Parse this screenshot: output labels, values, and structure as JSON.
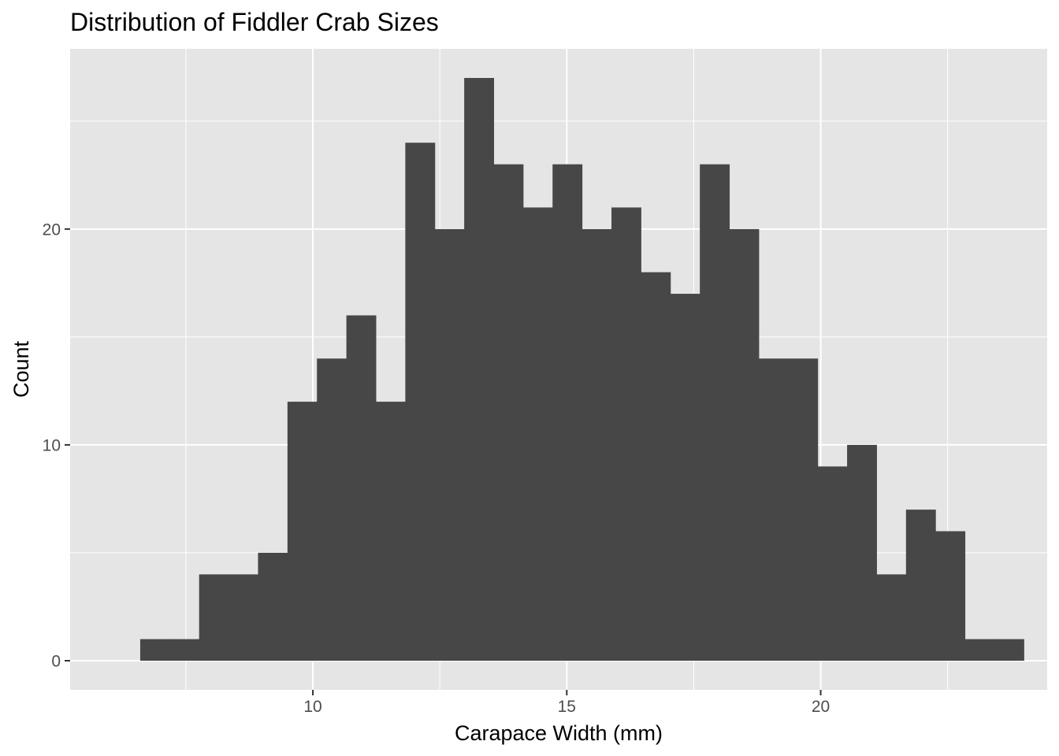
{
  "chart_data": {
    "type": "histogram",
    "title": "Distribution of Fiddler Crab Sizes",
    "xlabel": "Carapace Width (mm)",
    "ylabel": "Count",
    "bin_width": 0.58,
    "bin_start": 6.6,
    "counts": [
      1,
      1,
      4,
      4,
      5,
      12,
      14,
      16,
      12,
      24,
      20,
      27,
      23,
      21,
      23,
      20,
      21,
      18,
      17,
      23,
      20,
      14,
      14,
      9,
      10,
      4,
      7,
      6,
      1,
      1
    ],
    "xlim": [
      5.22,
      24.46
    ],
    "ylim": [
      -1.35,
      28.35
    ],
    "x_ticks": [
      10,
      15,
      20
    ],
    "x_tick_labels": [
      "10",
      "15",
      "20"
    ],
    "y_ticks": [
      0,
      10,
      20
    ],
    "y_tick_labels": [
      "0",
      "10",
      "20"
    ],
    "x_minor_ticks": [
      7.5,
      12.5,
      17.5,
      22.5
    ],
    "y_minor_ticks": [
      5,
      15,
      25
    ],
    "grid": true,
    "colors": {
      "panel_background": "#e5e5e5",
      "grid": "#ffffff",
      "bar_fill": "#474747",
      "tick_label": "#4d4d4d",
      "tick_mark": "#333333"
    }
  }
}
